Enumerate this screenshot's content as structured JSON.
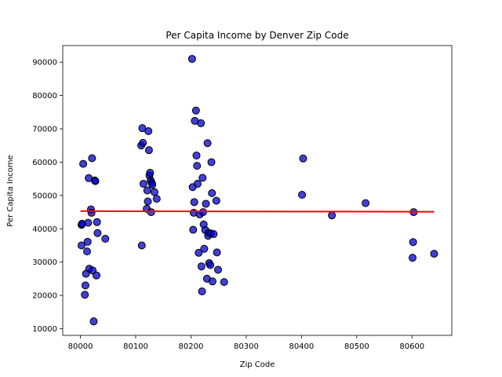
{
  "chart_data": {
    "type": "scatter",
    "title": "Per Capita Income by Denver Zip Code",
    "xlabel": "Zip Code",
    "ylabel": "Per Capita Income",
    "xlim": [
      79968,
      80672
    ],
    "ylim": [
      8000,
      95000
    ],
    "xticks": [
      80000,
      80100,
      80200,
      80300,
      80400,
      80500,
      80600
    ],
    "yticks": [
      10000,
      20000,
      30000,
      40000,
      50000,
      60000,
      70000,
      80000,
      90000
    ],
    "grid": false,
    "legend": false,
    "colors": {
      "point_fill": "#0000cc",
      "point_edge": "#000000",
      "line": "#ff0000"
    },
    "points": [
      {
        "x": 80002,
        "y": 41200
      },
      {
        "x": 80003,
        "y": 41500
      },
      {
        "x": 80002,
        "y": 35000
      },
      {
        "x": 80005,
        "y": 59500
      },
      {
        "x": 80008,
        "y": 20200
      },
      {
        "x": 80009,
        "y": 23000
      },
      {
        "x": 80010,
        "y": 26500
      },
      {
        "x": 80012,
        "y": 33200
      },
      {
        "x": 80013,
        "y": 36100
      },
      {
        "x": 80014,
        "y": 41800
      },
      {
        "x": 80015,
        "y": 55200
      },
      {
        "x": 80016,
        "y": 28000
      },
      {
        "x": 80019,
        "y": 45800
      },
      {
        "x": 80020,
        "y": 44800
      },
      {
        "x": 80021,
        "y": 61200
      },
      {
        "x": 80022,
        "y": 27500
      },
      {
        "x": 80024,
        "y": 12200
      },
      {
        "x": 80026,
        "y": 54500
      },
      {
        "x": 80027,
        "y": 54300
      },
      {
        "x": 80029,
        "y": 26000
      },
      {
        "x": 80030,
        "y": 42000
      },
      {
        "x": 80031,
        "y": 38700
      },
      {
        "x": 80045,
        "y": 37000
      },
      {
        "x": 80110,
        "y": 65000
      },
      {
        "x": 80111,
        "y": 35000
      },
      {
        "x": 80112,
        "y": 70200
      },
      {
        "x": 80113,
        "y": 65800
      },
      {
        "x": 80114,
        "y": 53500
      },
      {
        "x": 80120,
        "y": 46000
      },
      {
        "x": 80121,
        "y": 51500
      },
      {
        "x": 80122,
        "y": 48200
      },
      {
        "x": 80123,
        "y": 69300
      },
      {
        "x": 80124,
        "y": 63600
      },
      {
        "x": 80125,
        "y": 56000
      },
      {
        "x": 80126,
        "y": 56800
      },
      {
        "x": 80127,
        "y": 54500
      },
      {
        "x": 80128,
        "y": 45000
      },
      {
        "x": 80129,
        "y": 53800
      },
      {
        "x": 80130,
        "y": 53200
      },
      {
        "x": 80134,
        "y": 51000
      },
      {
        "x": 80138,
        "y": 49000
      },
      {
        "x": 80202,
        "y": 91000
      },
      {
        "x": 80203,
        "y": 52500
      },
      {
        "x": 80204,
        "y": 39700
      },
      {
        "x": 80205,
        "y": 44800
      },
      {
        "x": 80206,
        "y": 48000
      },
      {
        "x": 80207,
        "y": 72400
      },
      {
        "x": 80209,
        "y": 75500
      },
      {
        "x": 80210,
        "y": 62000
      },
      {
        "x": 80211,
        "y": 58900
      },
      {
        "x": 80212,
        "y": 53500
      },
      {
        "x": 80214,
        "y": 32800
      },
      {
        "x": 80216,
        "y": 44300
      },
      {
        "x": 80218,
        "y": 71700
      },
      {
        "x": 80219,
        "y": 28700
      },
      {
        "x": 80220,
        "y": 21200
      },
      {
        "x": 80221,
        "y": 55300
      },
      {
        "x": 80222,
        "y": 45000
      },
      {
        "x": 80223,
        "y": 41300
      },
      {
        "x": 80224,
        "y": 34000
      },
      {
        "x": 80226,
        "y": 39600
      },
      {
        "x": 80227,
        "y": 47500
      },
      {
        "x": 80229,
        "y": 25000
      },
      {
        "x": 80230,
        "y": 65700
      },
      {
        "x": 80231,
        "y": 37900
      },
      {
        "x": 80232,
        "y": 38800
      },
      {
        "x": 80233,
        "y": 29700
      },
      {
        "x": 80235,
        "y": 29100
      },
      {
        "x": 80236,
        "y": 38600
      },
      {
        "x": 80237,
        "y": 60000
      },
      {
        "x": 80238,
        "y": 50700
      },
      {
        "x": 80239,
        "y": 24200
      },
      {
        "x": 80241,
        "y": 38400
      },
      {
        "x": 80246,
        "y": 48400
      },
      {
        "x": 80247,
        "y": 32900
      },
      {
        "x": 80249,
        "y": 27700
      },
      {
        "x": 80260,
        "y": 24000
      },
      {
        "x": 80401,
        "y": 50200
      },
      {
        "x": 80403,
        "y": 61100
      },
      {
        "x": 80455,
        "y": 44000
      },
      {
        "x": 80516,
        "y": 47700
      },
      {
        "x": 80601,
        "y": 31300
      },
      {
        "x": 80602,
        "y": 36000
      },
      {
        "x": 80603,
        "y": 45000
      },
      {
        "x": 80640,
        "y": 32500
      }
    ],
    "trend_line": {
      "x": [
        80000,
        80640
      ],
      "y": [
        45300,
        45100
      ]
    }
  }
}
